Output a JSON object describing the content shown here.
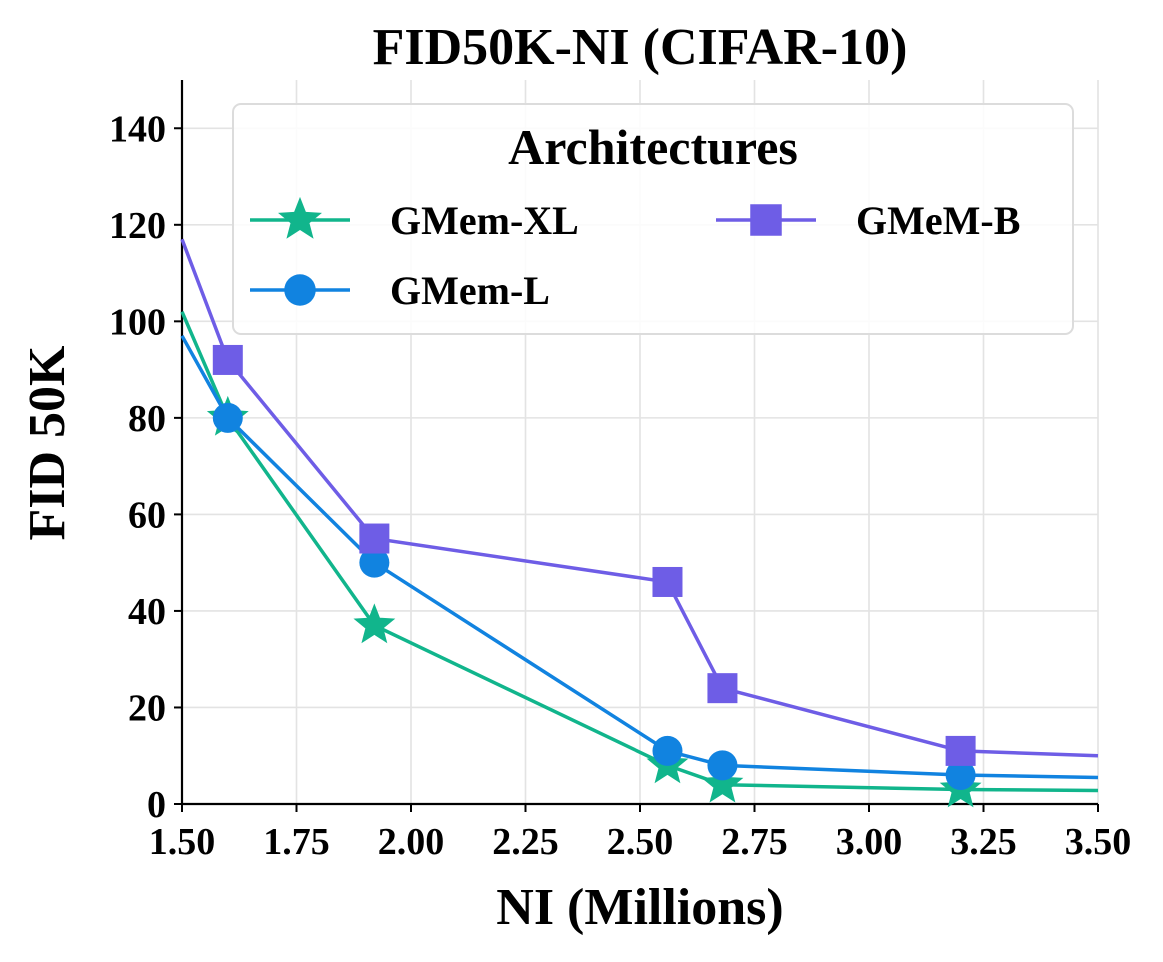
{
  "chart_data": {
    "type": "line",
    "title": "FID50K-NI (CIFAR-10)",
    "xlabel": "NI (Millions)",
    "ylabel": "FID 50K",
    "xlim": [
      1.5,
      3.5
    ],
    "ylim": [
      0,
      150
    ],
    "xticks": [
      1.5,
      1.75,
      2.0,
      2.25,
      2.5,
      2.75,
      3.0,
      3.25,
      3.5
    ],
    "xtick_labels": [
      "1.50",
      "1.75",
      "2.00",
      "2.25",
      "2.50",
      "2.75",
      "3.00",
      "3.25",
      "3.50"
    ],
    "yticks": [
      0,
      20,
      40,
      60,
      80,
      100,
      120,
      140
    ],
    "ytick_labels": [
      "0",
      "20",
      "40",
      "60",
      "80",
      "100",
      "120",
      "140"
    ],
    "grid": true,
    "legend": {
      "title": "Architectures",
      "placement": "top-right",
      "columns": 2
    },
    "series": [
      {
        "name": "GMem-XL",
        "color": "#11b58c",
        "marker": "star",
        "x": [
          1.5,
          1.6,
          1.92,
          2.56,
          2.68,
          3.2,
          3.5
        ],
        "y": [
          102,
          80,
          37,
          8,
          4,
          3,
          2.8
        ],
        "marked": [
          false,
          true,
          true,
          true,
          true,
          true,
          false
        ]
      },
      {
        "name": "GMem-L",
        "color": "#1183e0",
        "marker": "circle",
        "x": [
          1.5,
          1.6,
          1.92,
          2.56,
          2.68,
          3.2,
          3.5
        ],
        "y": [
          97,
          80,
          50,
          11,
          8,
          6,
          5.5
        ],
        "marked": [
          false,
          true,
          true,
          true,
          true,
          true,
          false
        ]
      },
      {
        "name": "GMeM-B",
        "color": "#6e5de6",
        "marker": "square",
        "x": [
          1.5,
          1.6,
          1.92,
          2.56,
          2.68,
          3.2,
          3.5
        ],
        "y": [
          117,
          92,
          55,
          46,
          24,
          11,
          10
        ],
        "marked": [
          false,
          true,
          true,
          true,
          true,
          true,
          false
        ]
      }
    ]
  }
}
